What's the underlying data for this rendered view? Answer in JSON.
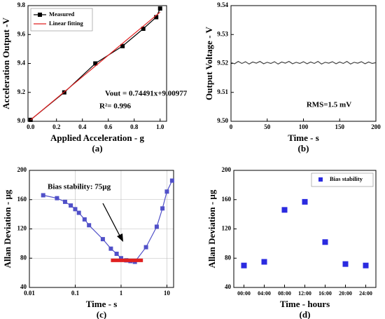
{
  "chart_data": [
    {
      "type": "line",
      "xlabel": "Applied Acceleration - g",
      "ylabel": "Acceleration Output -V",
      "caption": "(a)",
      "xlim": [
        -0.02,
        1.05
      ],
      "xticks": [
        {
          "value": 0,
          "label": "0.0"
        },
        0.2,
        0.4,
        0.6,
        0.8,
        {
          "value": 1,
          "label": "1.0"
        }
      ],
      "ylim": [
        9.0,
        9.8
      ],
      "yticks": [
        {
          "value": 9,
          "label": "9.0"
        },
        9.2,
        9.4,
        9.6,
        9.8
      ],
      "legend": "upper left",
      "series": [
        {
          "name": "Measured",
          "color": "#000000",
          "marker": "square",
          "x": [
            0,
            0.26,
            0.5,
            0.71,
            0.87,
            0.97,
            1.0
          ],
          "values": [
            9.01,
            9.2,
            9.4,
            9.52,
            9.64,
            9.72,
            9.78
          ]
        },
        {
          "name": "Linear fitting",
          "color": "#e02020",
          "x": [
            0,
            1
          ],
          "values": [
            9.00977,
            9.75468
          ]
        }
      ],
      "annotations": [
        "Vout = 0.74491x+9.00977",
        "R²= 0.996"
      ]
    },
    {
      "type": "line",
      "xlabel": "Time - s",
      "ylabel": "Output Voltage - V",
      "caption": "(b)",
      "xlim": [
        0,
        200
      ],
      "xticks": [
        0,
        50,
        100,
        150,
        200
      ],
      "ylim": [
        9.5,
        9.54
      ],
      "yticks": [
        {
          "value": 9.5,
          "label": "9.50"
        },
        9.51,
        9.52,
        9.53,
        9.54
      ],
      "series": [
        {
          "color": "#444444",
          "x": [
            0,
            5,
            10,
            15,
            20,
            25,
            30,
            35,
            40,
            45,
            50,
            55,
            60,
            65,
            70,
            75,
            80,
            85,
            90,
            95,
            100,
            105,
            110,
            115,
            120,
            125,
            130,
            135,
            140,
            145,
            150,
            155,
            160,
            165,
            170,
            175,
            180,
            185,
            190,
            195,
            200
          ],
          "values": [
            9.5203,
            9.5199,
            9.5207,
            9.52,
            9.5206,
            9.5198,
            9.5205,
            9.5201,
            9.5207,
            9.5199,
            9.5204,
            9.52,
            9.5206,
            9.5198,
            9.5205,
            9.5201,
            9.5207,
            9.5199,
            9.5204,
            9.52,
            9.5206,
            9.5199,
            9.5205,
            9.52,
            9.5207,
            9.5198,
            9.5204,
            9.5201,
            9.5206,
            9.5199,
            9.5205,
            9.52,
            9.5207,
            9.5198,
            9.5204,
            9.5201,
            9.5206,
            9.5199,
            9.5205,
            9.52,
            9.5203
          ]
        }
      ],
      "annotations": [
        "RMS=1.5 mV"
      ]
    },
    {
      "type": "line",
      "xlabel": "Time - s",
      "ylabel": "Allan Deviation - µg",
      "caption": "(c)",
      "xscale": "log",
      "grid": true,
      "xlim": [
        0.01,
        14
      ],
      "xticks": [
        0.01,
        0.1,
        1,
        10
      ],
      "ylim": [
        40,
        200
      ],
      "yticks": [
        40,
        80,
        120,
        160,
        200
      ],
      "series": [
        {
          "color": "#5050c8",
          "marker": "square",
          "x": [
            0.02,
            0.04,
            0.06,
            0.08,
            0.1,
            0.12,
            0.16,
            0.2,
            0.4,
            0.6,
            0.8,
            1,
            1.3,
            1.6,
            2,
            3.5,
            6,
            8,
            10,
            13
          ],
          "values": [
            166,
            162,
            157,
            152,
            147,
            142,
            133,
            125,
            106,
            93,
            86,
            80,
            77,
            76,
            75,
            95,
            123,
            148,
            171,
            186
          ]
        },
        {
          "color": "#e02020",
          "width": 5,
          "x": [
            0.6,
            3
          ],
          "values": [
            77,
            77
          ]
        }
      ],
      "annotations": [
        "Bias stability:   75µg"
      ]
    },
    {
      "type": "scatter",
      "xlabel": "Time - hours",
      "ylabel": "Allan Deviation - µg",
      "caption": "(d)",
      "categories": [
        "00:00",
        "04:00",
        "08:00",
        "12:00",
        "16:00",
        "20:00",
        "24:00"
      ],
      "ylim": [
        40,
        200
      ],
      "yticks": [
        40,
        80,
        120,
        160,
        200
      ],
      "legend": "upper right",
      "series": [
        {
          "name": "Bias stability",
          "color": "#2a2ae0",
          "marker": "square",
          "values": [
            70,
            75,
            146,
            157,
            102,
            72,
            70
          ]
        }
      ]
    }
  ]
}
